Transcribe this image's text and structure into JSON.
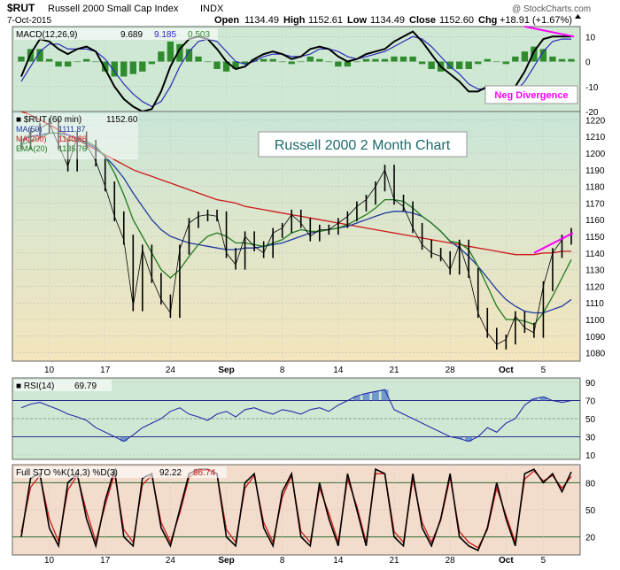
{
  "header": {
    "symbol": "$RUT",
    "name": "Russell 2000 Small Cap Index",
    "exchange": "INDX",
    "date": "7-Oct-2015",
    "watermark": "@ StockCharts.com",
    "open_label": "Open",
    "open": "1134.49",
    "high_label": "High",
    "high": "1152.61",
    "low_label": "Low",
    "low": "1134.49",
    "close_label": "Close",
    "close": "1152.60",
    "chg_label": "Chg",
    "chg": "+18.91 (+1.67%)"
  },
  "colors": {
    "price_line": "#000000",
    "ma50": "#1f3aa0",
    "ma200": "#cc1a1a",
    "ema20": "#1e7a1e",
    "macd_line": "#000000",
    "signal_line": "#2a2ab8",
    "histogram": "#2e8b2e",
    "rsi_line": "#2a2aa8",
    "rsi_fill": "#4a78c8",
    "sto_k": "#000000",
    "sto_d": "#cc1a1a",
    "divergence": "#ff00ff",
    "panel_green": "#cfe8d4",
    "panel_tan": "#f2e6c2",
    "sto_bg": "#f3dccb"
  },
  "chart_data": [
    {
      "type": "line",
      "panel": "macd",
      "legend": {
        "macd": "MACD(12,26,9)",
        "macd_value": "9.689",
        "signal_value": "9.185",
        "hist_value": "0.503"
      },
      "ylim": [
        -20,
        14
      ],
      "y_ticks": [
        10,
        0,
        -10,
        -20
      ],
      "annotation": "Neg Divergence",
      "series": [
        {
          "name": "MACD",
          "values": [
            -6,
            3,
            9,
            8,
            5,
            3,
            5,
            6,
            4,
            -3,
            -10,
            -15,
            -18,
            -20,
            -19,
            -12,
            -2,
            5,
            9,
            10,
            9,
            5,
            0,
            -3,
            -2,
            1,
            3,
            4,
            3,
            1,
            2,
            5,
            6,
            5,
            2,
            0,
            1,
            3,
            4,
            5,
            8,
            10,
            12,
            8,
            3,
            -2,
            -5,
            -8,
            -12,
            -12,
            -10,
            -12,
            -14,
            -10,
            -4,
            4,
            9,
            10,
            10,
            10
          ]
        },
        {
          "name": "Signal",
          "values": [
            -8,
            -2,
            4,
            7,
            7,
            5,
            5,
            5,
            4,
            1,
            -4,
            -9,
            -13,
            -16,
            -18,
            -16,
            -10,
            -2,
            4,
            8,
            9,
            8,
            4,
            0,
            -1,
            0,
            2,
            3,
            3,
            2,
            2,
            3,
            5,
            5,
            4,
            2,
            1,
            2,
            3,
            4,
            6,
            8,
            10,
            9,
            6,
            2,
            -2,
            -5,
            -9,
            -11,
            -11,
            -12,
            -13,
            -12,
            -8,
            -2,
            4,
            8,
            9,
            9
          ]
        }
      ],
      "divergence_values": [
        14,
        10
      ]
    },
    {
      "type": "line",
      "panel": "price",
      "legend": {
        "price": "$RUT (60 min)",
        "price_value": "1152.60",
        "ma50": "MA(50)",
        "ma50_value": "1111.87",
        "ma200": "MA(200)",
        "ma200_value": "1140.86",
        "ema20": "EMA(20)",
        "ema20_value": "1135.76"
      },
      "title": "Russell 2000 2 Month Chart",
      "ylim": [
        1075,
        1225
      ],
      "y_ticks": [
        1220,
        1210,
        1200,
        1190,
        1180,
        1170,
        1160,
        1150,
        1140,
        1130,
        1120,
        1110,
        1100,
        1090,
        1080
      ],
      "x_tick_labels": [
        "10",
        "17",
        "24",
        "Sep",
        "8",
        "14",
        "21",
        "28",
        "Oct",
        "5"
      ],
      "series": [
        {
          "name": "Price",
          "values": [
            1205,
            1212,
            1215,
            1218,
            1205,
            1192,
            1210,
            1205,
            1195,
            1180,
            1162,
            1148,
            1108,
            1142,
            1125,
            1112,
            1104,
            1142,
            1158,
            1162,
            1163,
            1162,
            1140,
            1133,
            1150,
            1144,
            1140,
            1152,
            1155,
            1163,
            1158,
            1150,
            1154,
            1154,
            1158,
            1162,
            1168,
            1172,
            1180,
            1190,
            1172,
            1168,
            1155,
            1145,
            1140,
            1138,
            1130,
            1145,
            1128,
            1104,
            1092,
            1085,
            1088,
            1102,
            1095,
            1092,
            1120,
            1140,
            1148,
            1152
          ]
        },
        {
          "name": "MA(50)",
          "values": [
            1208,
            1210,
            1211,
            1212,
            1212,
            1211,
            1209,
            1206,
            1203,
            1198,
            1192,
            1185,
            1176,
            1168,
            1160,
            1154,
            1150,
            1148,
            1146,
            1145,
            1144,
            1143,
            1142,
            1142,
            1143,
            1143,
            1144,
            1145,
            1146,
            1148,
            1150,
            1152,
            1153,
            1154,
            1155,
            1156,
            1158,
            1160,
            1162,
            1164,
            1165,
            1165,
            1164,
            1162,
            1158,
            1153,
            1147,
            1143,
            1138,
            1132,
            1125,
            1118,
            1112,
            1108,
            1105,
            1104,
            1104,
            1106,
            1108,
            1112
          ]
        },
        {
          "name": "MA(200)",
          "values": [
            1225,
            1223,
            1220,
            1217,
            1214,
            1211,
            1208,
            1205,
            1202,
            1199,
            1196,
            1193,
            1190,
            1188,
            1186,
            1184,
            1182,
            1180,
            1178,
            1176,
            1174,
            1172,
            1171,
            1170,
            1168,
            1167,
            1166,
            1165,
            1164,
            1163,
            1162,
            1161,
            1160,
            1159,
            1158,
            1157,
            1156,
            1155,
            1154,
            1153,
            1152,
            1151,
            1150,
            1149,
            1148,
            1147,
            1146,
            1145,
            1144,
            1143,
            1142,
            1141,
            1140,
            1139,
            1139,
            1139,
            1140,
            1140,
            1141,
            1141
          ]
        },
        {
          "name": "EMA(20)",
          "values": [
            1205,
            1207,
            1209,
            1212,
            1212,
            1208,
            1207,
            1207,
            1204,
            1198,
            1188,
            1175,
            1160,
            1150,
            1140,
            1130,
            1125,
            1130,
            1138,
            1145,
            1150,
            1152,
            1150,
            1146,
            1146,
            1145,
            1144,
            1146,
            1148,
            1152,
            1154,
            1153,
            1153,
            1154,
            1155,
            1157,
            1160,
            1163,
            1167,
            1172,
            1172,
            1171,
            1167,
            1162,
            1158,
            1153,
            1147,
            1146,
            1142,
            1132,
            1120,
            1108,
            1100,
            1100,
            1099,
            1097,
            1104,
            1114,
            1125,
            1136
          ]
        }
      ],
      "divergence_values": [
        1140,
        1152
      ]
    },
    {
      "type": "line",
      "panel": "rsi",
      "legend": {
        "rsi": "RSI(14)",
        "rsi_value": "69.79"
      },
      "ylim": [
        5,
        95
      ],
      "y_ticks": [
        90,
        70,
        50,
        30,
        10
      ],
      "series": [
        {
          "name": "RSI",
          "values": [
            62,
            66,
            68,
            64,
            60,
            55,
            52,
            48,
            40,
            35,
            30,
            25,
            32,
            40,
            45,
            50,
            58,
            62,
            55,
            52,
            48,
            55,
            58,
            52,
            60,
            62,
            58,
            55,
            60,
            58,
            55,
            60,
            62,
            58,
            65,
            70,
            75,
            78,
            80,
            82,
            60,
            55,
            50,
            45,
            40,
            35,
            30,
            28,
            25,
            30,
            40,
            35,
            45,
            50,
            65,
            72,
            74,
            70,
            68,
            70
          ]
        }
      ]
    },
    {
      "type": "line",
      "panel": "stochastic",
      "legend": {
        "sto": "Full STO %K(14,3) %D(3)",
        "k_value": "92.22",
        "d_value": "86.74"
      },
      "ylim": [
        0,
        100
      ],
      "y_ticks": [
        80,
        50,
        20
      ],
      "series": [
        {
          "name": "%K",
          "values": [
            20,
            85,
            90,
            30,
            10,
            80,
            90,
            40,
            10,
            60,
            95,
            20,
            10,
            85,
            90,
            30,
            10,
            50,
            90,
            95,
            95,
            90,
            20,
            10,
            80,
            90,
            30,
            10,
            70,
            90,
            20,
            10,
            80,
            40,
            10,
            90,
            50,
            10,
            95,
            90,
            20,
            10,
            90,
            30,
            10,
            40,
            90,
            20,
            10,
            5,
            30,
            80,
            40,
            10,
            90,
            95,
            80,
            90,
            70,
            92
          ]
        },
        {
          "name": "%D",
          "values": [
            25,
            75,
            88,
            40,
            15,
            72,
            88,
            48,
            15,
            55,
            90,
            28,
            14,
            78,
            88,
            36,
            14,
            46,
            86,
            93,
            94,
            90,
            28,
            14,
            74,
            88,
            36,
            14,
            64,
            88,
            26,
            14,
            74,
            46,
            14,
            84,
            54,
            14,
            90,
            90,
            26,
            14,
            84,
            36,
            14,
            38,
            86,
            26,
            14,
            8,
            28,
            74,
            44,
            14,
            84,
            93,
            82,
            88,
            74,
            87
          ]
        }
      ]
    }
  ]
}
